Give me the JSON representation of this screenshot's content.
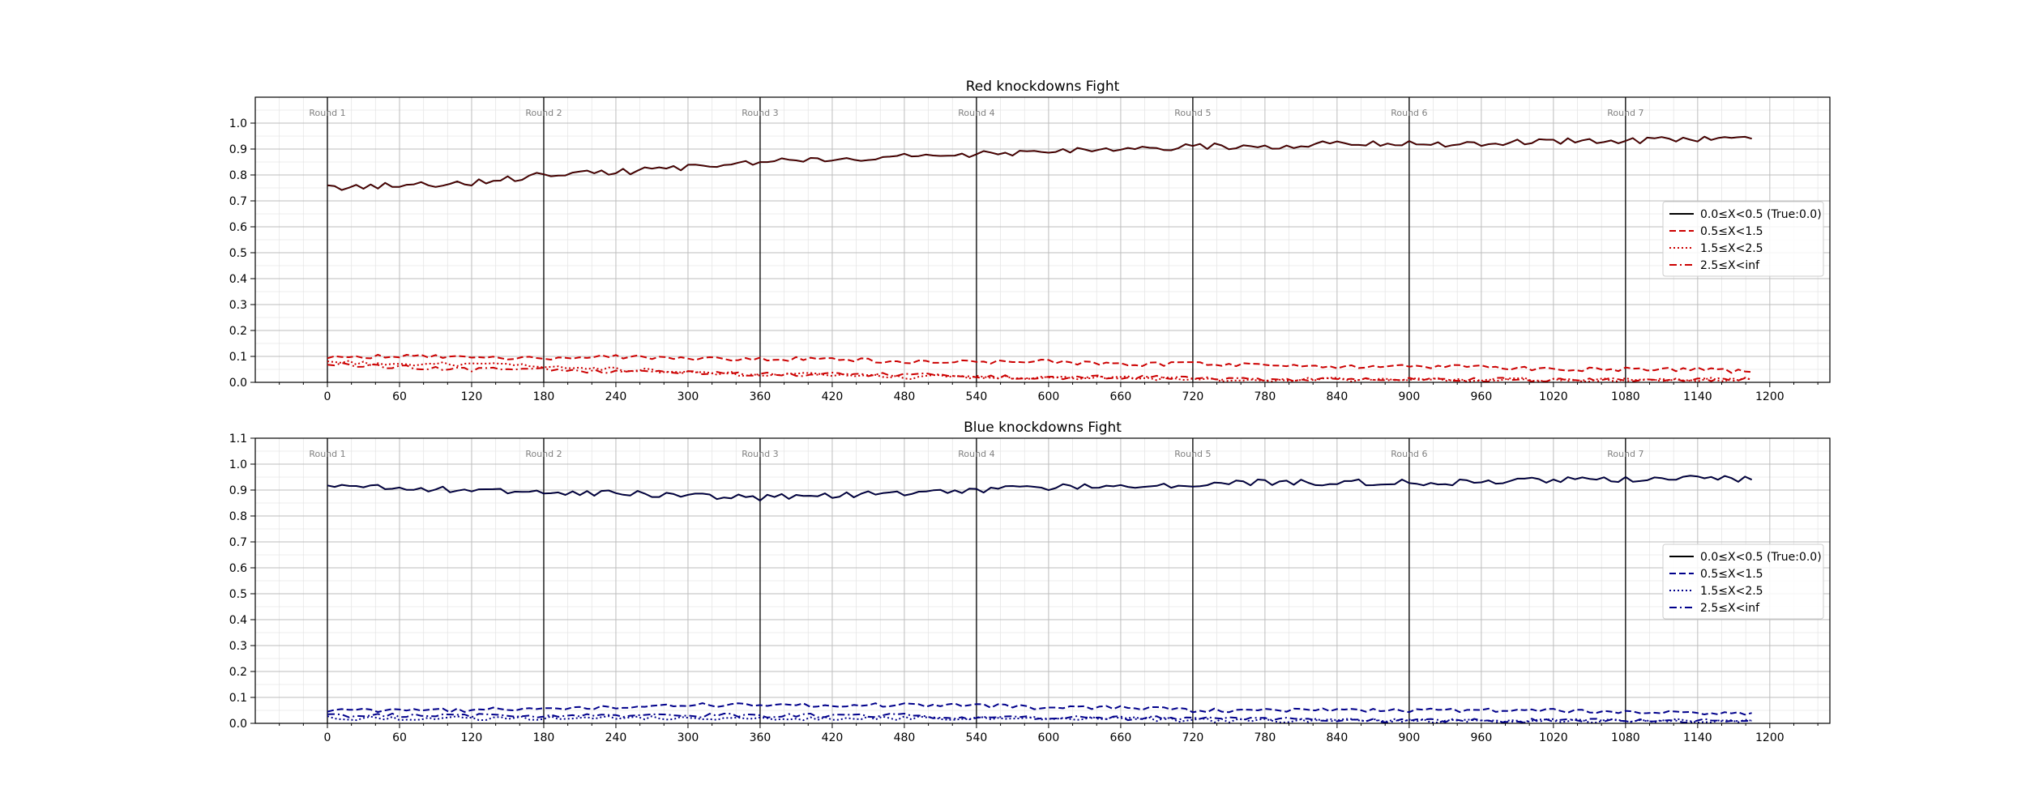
{
  "chart_data": [
    {
      "type": "line",
      "title": "Red knockdowns Fight",
      "xlabel": "",
      "ylabel": "",
      "xlim": [
        -60,
        1250
      ],
      "ylim": [
        0,
        1.1
      ],
      "xticks": [
        0,
        60,
        120,
        180,
        240,
        300,
        360,
        420,
        480,
        540,
        600,
        660,
        720,
        780,
        840,
        900,
        960,
        1020,
        1080,
        1140,
        1200
      ],
      "yticks": [
        0.0,
        0.1,
        0.2,
        0.3,
        0.4,
        0.5,
        0.6,
        0.7,
        0.8,
        0.9,
        1.0
      ],
      "grid": true,
      "legend_position": "center-right",
      "colors": {
        "main": "#000000",
        "series": "#cc0000",
        "overlay": "#5a0000"
      },
      "round_markers": [
        {
          "x": 0,
          "label": "Round 1"
        },
        {
          "x": 180,
          "label": "Round 2"
        },
        {
          "x": 360,
          "label": "Round 3"
        },
        {
          "x": 540,
          "label": "Round 4"
        },
        {
          "x": 720,
          "label": "Round 5"
        },
        {
          "x": 900,
          "label": "Round 6"
        },
        {
          "x": 1080,
          "label": "Round 7"
        }
      ],
      "x": [
        0,
        60,
        120,
        180,
        240,
        300,
        360,
        420,
        480,
        540,
        600,
        660,
        720,
        780,
        840,
        900,
        960,
        1020,
        1080,
        1140,
        1185
      ],
      "series": [
        {
          "name": "0.0≤X<0.5 (True:0.0)",
          "style": "solid",
          "values": [
            0.75,
            0.76,
            0.77,
            0.8,
            0.81,
            0.83,
            0.85,
            0.86,
            0.87,
            0.88,
            0.89,
            0.9,
            0.91,
            0.91,
            0.92,
            0.92,
            0.92,
            0.93,
            0.93,
            0.94,
            0.94
          ]
        },
        {
          "name": "0.5≤X<1.5",
          "style": "dashed",
          "values": [
            0.1,
            0.1,
            0.1,
            0.09,
            0.1,
            0.09,
            0.09,
            0.09,
            0.08,
            0.08,
            0.08,
            0.07,
            0.07,
            0.07,
            0.06,
            0.06,
            0.06,
            0.05,
            0.05,
            0.05,
            0.04
          ]
        },
        {
          "name": "1.5≤X<2.5",
          "style": "dotted",
          "values": [
            0.08,
            0.07,
            0.07,
            0.06,
            0.05,
            0.04,
            0.03,
            0.03,
            0.02,
            0.02,
            0.02,
            0.02,
            0.01,
            0.01,
            0.01,
            0.01,
            0.01,
            0.01,
            0.01,
            0.01,
            0.01
          ]
        },
        {
          "name": "2.5≤X<inf",
          "style": "dashdot",
          "values": [
            0.07,
            0.06,
            0.05,
            0.05,
            0.04,
            0.04,
            0.03,
            0.03,
            0.03,
            0.02,
            0.02,
            0.02,
            0.02,
            0.01,
            0.01,
            0.01,
            0.01,
            0.01,
            0.01,
            0.01,
            0.01
          ]
        }
      ]
    },
    {
      "type": "line",
      "title": "Blue knockdowns Fight",
      "xlabel": "",
      "ylabel": "",
      "xlim": [
        -60,
        1250
      ],
      "ylim": [
        0,
        1.1
      ],
      "xticks": [
        0,
        60,
        120,
        180,
        240,
        300,
        360,
        420,
        480,
        540,
        600,
        660,
        720,
        780,
        840,
        900,
        960,
        1020,
        1080,
        1140,
        1200
      ],
      "yticks": [
        0.0,
        0.1,
        0.2,
        0.3,
        0.4,
        0.5,
        0.6,
        0.7,
        0.8,
        0.9,
        1.0,
        1.1
      ],
      "grid": true,
      "legend_position": "center-right",
      "colors": {
        "main": "#000000",
        "series": "#00008b",
        "overlay": "#000050"
      },
      "round_markers": [
        {
          "x": 0,
          "label": "Round 1"
        },
        {
          "x": 180,
          "label": "Round 2"
        },
        {
          "x": 360,
          "label": "Round 3"
        },
        {
          "x": 540,
          "label": "Round 4"
        },
        {
          "x": 720,
          "label": "Round 5"
        },
        {
          "x": 900,
          "label": "Round 6"
        },
        {
          "x": 1080,
          "label": "Round 7"
        }
      ],
      "x": [
        0,
        60,
        120,
        180,
        240,
        300,
        360,
        420,
        480,
        540,
        600,
        660,
        720,
        780,
        840,
        900,
        960,
        1020,
        1080,
        1140,
        1185
      ],
      "series": [
        {
          "name": "0.0≤X<0.5 (True:0.0)",
          "style": "solid",
          "values": [
            0.91,
            0.91,
            0.9,
            0.89,
            0.89,
            0.88,
            0.87,
            0.88,
            0.89,
            0.9,
            0.91,
            0.92,
            0.92,
            0.93,
            0.93,
            0.93,
            0.93,
            0.94,
            0.94,
            0.95,
            0.94
          ]
        },
        {
          "name": "0.5≤X<1.5",
          "style": "dashed",
          "values": [
            0.05,
            0.05,
            0.05,
            0.06,
            0.06,
            0.07,
            0.07,
            0.07,
            0.07,
            0.07,
            0.06,
            0.06,
            0.05,
            0.05,
            0.05,
            0.05,
            0.05,
            0.05,
            0.04,
            0.04,
            0.04
          ]
        },
        {
          "name": "1.5≤X<2.5",
          "style": "dotted",
          "values": [
            0.02,
            0.02,
            0.02,
            0.02,
            0.02,
            0.02,
            0.02,
            0.02,
            0.02,
            0.02,
            0.02,
            0.02,
            0.01,
            0.01,
            0.01,
            0.01,
            0.01,
            0.01,
            0.01,
            0.01,
            0.01
          ]
        },
        {
          "name": "2.5≤X<inf",
          "style": "dashdot",
          "values": [
            0.03,
            0.03,
            0.03,
            0.03,
            0.03,
            0.03,
            0.03,
            0.03,
            0.03,
            0.02,
            0.02,
            0.02,
            0.02,
            0.02,
            0.01,
            0.01,
            0.01,
            0.01,
            0.01,
            0.01,
            0.01
          ]
        }
      ]
    }
  ]
}
